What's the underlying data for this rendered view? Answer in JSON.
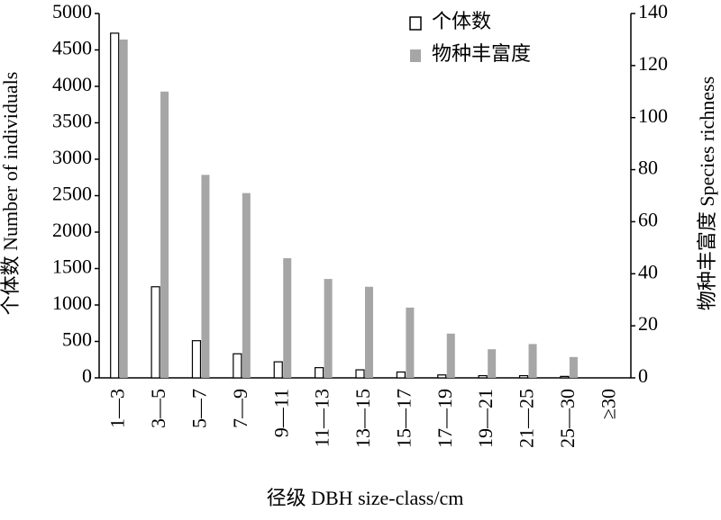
{
  "chart_data": {
    "type": "bar",
    "x_label": "径级 DBH size-class/cm",
    "y_label": "个体数 Number of individuals",
    "y2_label": "物种丰富度 Species richness",
    "categories": [
      "1—3",
      "3—5",
      "5—7",
      "7—9",
      "9—11",
      "11—13",
      "13—15",
      "15—17",
      "17—19",
      "19—21",
      "21—25",
      "25—30",
      "≥30"
    ],
    "series": [
      {
        "name": "个体数",
        "color": "#ffffff",
        "values": [
          4730,
          1250,
          510,
          330,
          220,
          140,
          110,
          80,
          40,
          30,
          30,
          20,
          0
        ]
      },
      {
        "name": "物种丰富度",
        "color": "#a6a6a6",
        "axis": "y2",
        "values": [
          130,
          110,
          78,
          71,
          46,
          38,
          35,
          27,
          17,
          11,
          13,
          8,
          0
        ]
      }
    ],
    "ylim": [
      0,
      5000
    ],
    "yticks": [
      0,
      500,
      1000,
      1500,
      2000,
      2500,
      3000,
      3500,
      4000,
      4500,
      5000
    ],
    "y2lim": [
      0,
      140
    ],
    "y2ticks": [
      0,
      20,
      40,
      60,
      80,
      100,
      120,
      140
    ],
    "legend": "top-right"
  }
}
